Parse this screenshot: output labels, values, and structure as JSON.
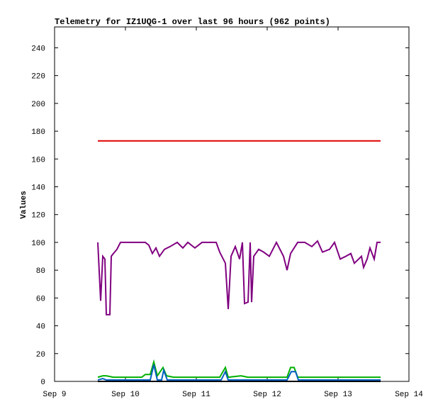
{
  "chart_data": {
    "type": "line",
    "title": "Telemetry for IZ1UQG-1 over last 96 hours (962 points)",
    "y_label": "Values",
    "xlim": [
      0,
      5
    ],
    "xticks": [
      {
        "value": 0,
        "label": "Sep 9"
      },
      {
        "value": 1,
        "label": "Sep 10"
      },
      {
        "value": 2,
        "label": "Sep 11"
      },
      {
        "value": 3,
        "label": "Sep 12"
      },
      {
        "value": 4,
        "label": "Sep 13"
      },
      {
        "value": 5,
        "label": "Sep 14"
      }
    ],
    "ylim": [
      0,
      255
    ],
    "yticks": [
      0,
      20,
      40,
      60,
      80,
      100,
      120,
      140,
      160,
      180,
      200,
      220,
      240
    ],
    "series": [
      {
        "color": "#e00000",
        "x": [
          0.61,
          4.6
        ],
        "values": [
          173,
          173
        ]
      },
      {
        "color": "#800080",
        "x": [
          0.61,
          0.65,
          0.68,
          0.71,
          0.73,
          0.78,
          0.8,
          0.83,
          0.88,
          0.93,
          1.03,
          1.28,
          1.33,
          1.38,
          1.43,
          1.48,
          1.55,
          1.63,
          1.73,
          1.81,
          1.88,
          1.98,
          2.08,
          2.28,
          2.33,
          2.41,
          2.45,
          2.49,
          2.55,
          2.61,
          2.65,
          2.68,
          2.73,
          2.76,
          2.78,
          2.81,
          2.88,
          2.95,
          3.03,
          3.13,
          3.23,
          3.28,
          3.33,
          3.43,
          3.53,
          3.63,
          3.71,
          3.78,
          3.88,
          3.95,
          4.03,
          4.11,
          4.18,
          4.23,
          4.33,
          4.36,
          4.41,
          4.45,
          4.51,
          4.55,
          4.6
        ],
        "values": [
          100,
          58,
          90,
          88,
          48,
          48,
          90,
          92,
          95,
          100,
          100,
          100,
          98,
          92,
          96,
          90,
          95,
          97,
          100,
          96,
          100,
          96,
          100,
          100,
          93,
          85,
          52,
          90,
          97,
          88,
          100,
          56,
          57,
          100,
          57,
          90,
          95,
          93,
          90,
          100,
          90,
          80,
          92,
          100,
          100,
          97,
          101,
          93,
          95,
          100,
          88,
          90,
          92,
          85,
          90,
          82,
          88,
          96,
          88,
          100,
          100
        ]
      },
      {
        "color": "#00b000",
        "x": [
          0.61,
          0.68,
          0.73,
          0.83,
          1.23,
          1.28,
          1.35,
          1.4,
          1.45,
          1.53,
          1.58,
          1.68,
          2.33,
          2.41,
          2.45,
          2.63,
          2.73,
          3.28,
          3.33,
          3.38,
          3.43,
          4.6
        ],
        "values": [
          3,
          4,
          4,
          3,
          3,
          5,
          5,
          14,
          4,
          10,
          4,
          3,
          3,
          10,
          3,
          4,
          3,
          3,
          10,
          10,
          3,
          3
        ]
      },
      {
        "color": "#0060c0",
        "x": [
          0.61,
          0.68,
          0.73,
          1.35,
          1.4,
          1.45,
          1.51,
          1.54,
          1.59,
          2.35,
          2.41,
          2.45,
          3.28,
          3.34,
          3.4,
          3.44,
          4.6
        ],
        "values": [
          1,
          2,
          1,
          1,
          12,
          1,
          1,
          8,
          1,
          1,
          7,
          1,
          1,
          7,
          7,
          1,
          1
        ]
      },
      {
        "color": "#000000",
        "x": [
          0.61,
          4.6
        ],
        "values": [
          0,
          0
        ]
      }
    ]
  }
}
